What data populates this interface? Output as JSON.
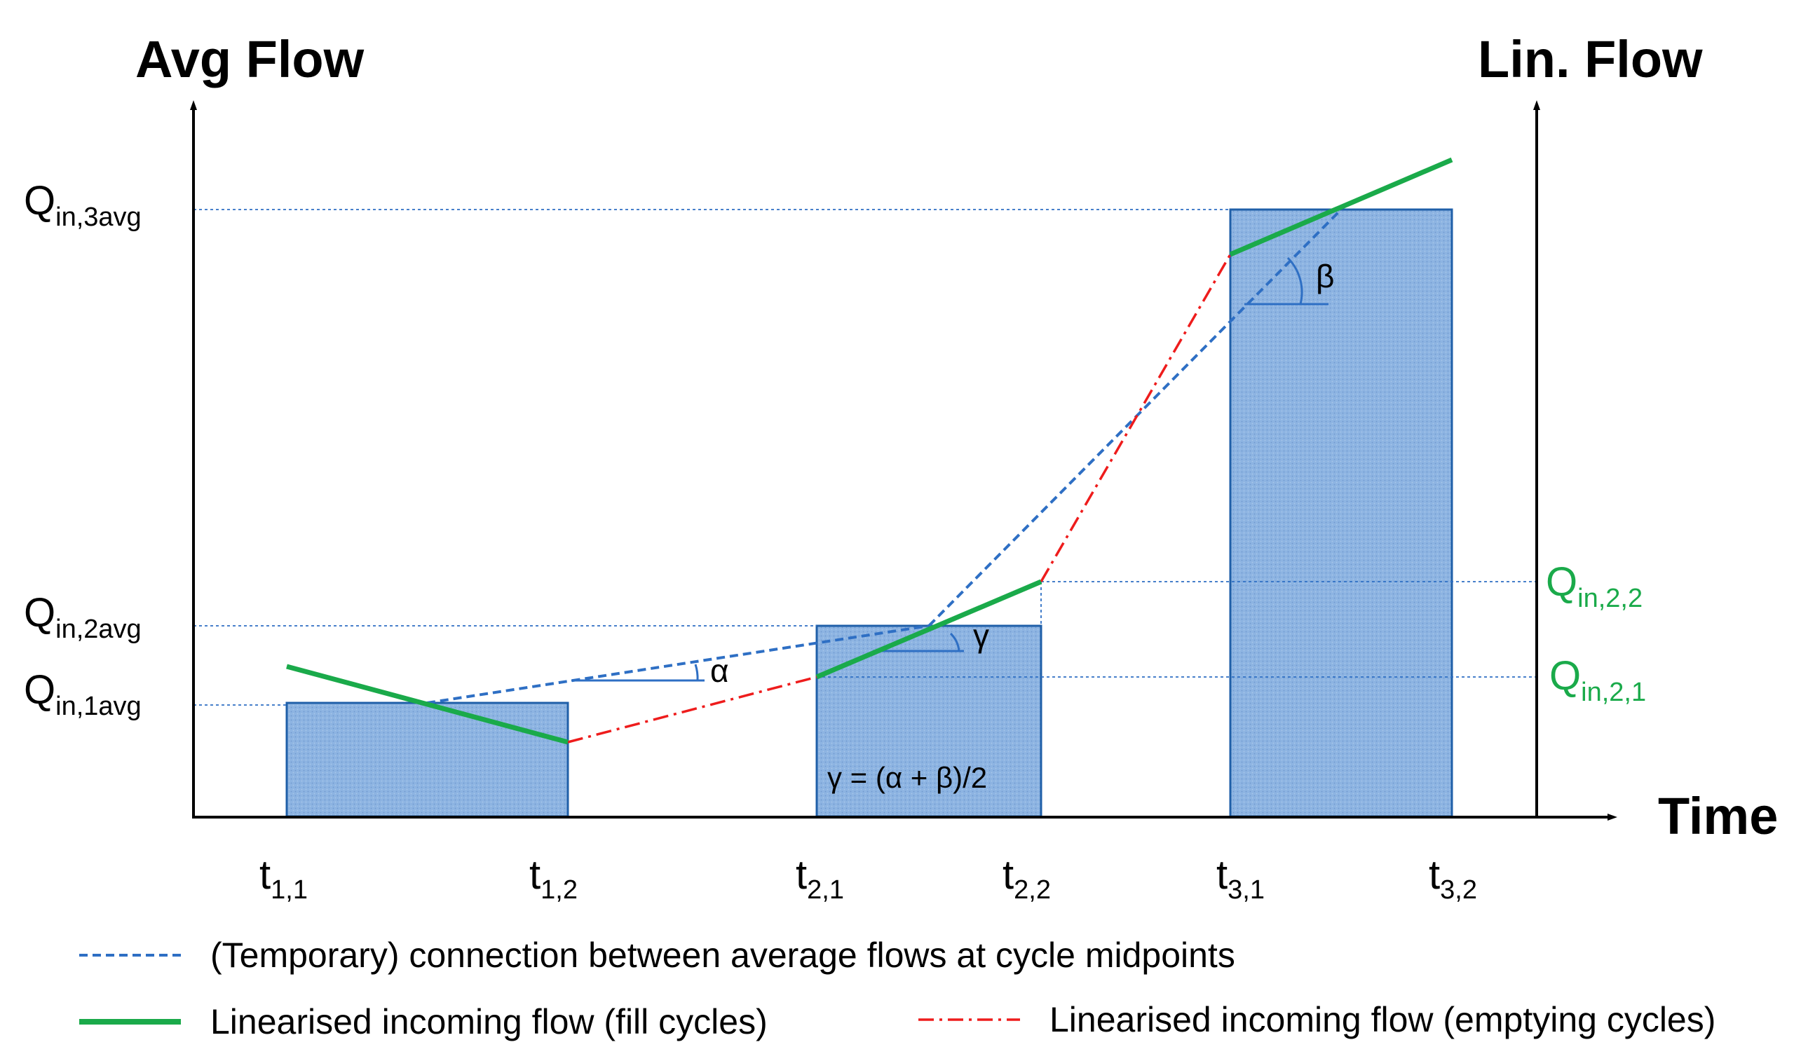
{
  "axes": {
    "left_title": "Avg Flow",
    "right_title": "Lin. Flow",
    "x_title": "Time"
  },
  "y_labels": {
    "q3avg": {
      "main": "Q",
      "sub": "in,3avg"
    },
    "q2avg": {
      "main": "Q",
      "sub": "in,2avg"
    },
    "q1avg": {
      "main": "Q",
      "sub": "in,1avg"
    },
    "q22": {
      "main": "Q",
      "sub": "in,2,2"
    },
    "q21": {
      "main": "Q",
      "sub": "in,2,1"
    }
  },
  "x_labels": [
    {
      "main": "t",
      "sub": "1,1"
    },
    {
      "main": "t",
      "sub": "1,2"
    },
    {
      "main": "t",
      "sub": "2,1"
    },
    {
      "main": "t",
      "sub": "2,2"
    },
    {
      "main": "t",
      "sub": "3,1"
    },
    {
      "main": "t",
      "sub": "3,2"
    }
  ],
  "angles": {
    "alpha": "α",
    "beta": "β",
    "gamma": "γ",
    "formula": "γ = (α + β)/2"
  },
  "legend": {
    "dashed_blue": "(Temporary) connection between average flows at cycle midpoints",
    "green": "Linearised incoming flow (fill cycles)",
    "red": "Linearised incoming flow (emptying cycles)"
  },
  "colors": {
    "bar_fill": "#8db4e2",
    "bar_stroke": "#1f5fa8",
    "blue_dash": "#2e6fc4",
    "green": "#1aaa4a",
    "red": "#ee1c1c",
    "axis": "#000000"
  }
}
